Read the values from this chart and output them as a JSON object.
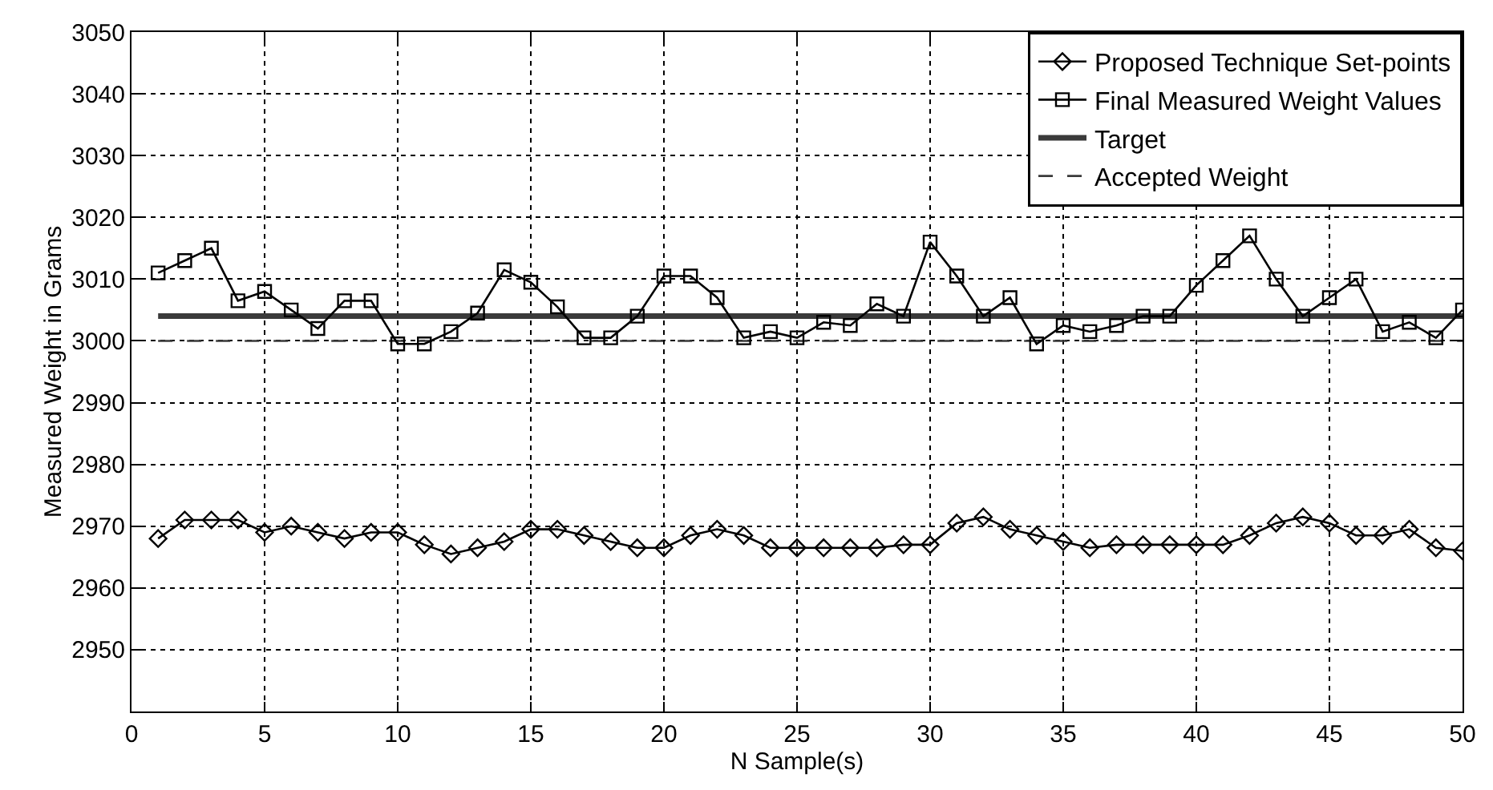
{
  "chart_data": {
    "type": "line",
    "xlabel": "N Sample(s)",
    "ylabel": "Measured Weight in Grams",
    "x": [
      1,
      2,
      3,
      4,
      5,
      6,
      7,
      8,
      9,
      10,
      11,
      12,
      13,
      14,
      15,
      16,
      17,
      18,
      19,
      20,
      21,
      22,
      23,
      24,
      25,
      26,
      27,
      28,
      29,
      30,
      31,
      32,
      33,
      34,
      35,
      36,
      37,
      38,
      39,
      40,
      41,
      42,
      43,
      44,
      45,
      46,
      47,
      48,
      49,
      50
    ],
    "series": [
      {
        "name": "Proposed Technique Set-points",
        "color": "#000000",
        "marker": "diamond",
        "line_style": "solid",
        "values": [
          2968,
          2971,
          2971,
          2971,
          2969,
          2970,
          2969,
          2968,
          2969,
          2969,
          2967,
          2965.5,
          2966.5,
          2967.5,
          2969.5,
          2969.5,
          2968.5,
          2967.5,
          2966.5,
          2966.5,
          2968.5,
          2969.5,
          2968.5,
          2966.5,
          2966.5,
          2966.5,
          2966.5,
          2966.5,
          2967,
          2967,
          2970.5,
          2971.5,
          2969.5,
          2968.5,
          2967.5,
          2966.5,
          2967,
          2967,
          2967,
          2967,
          2967,
          2968.5,
          2970.5,
          2971.5,
          2970.5,
          2968.5,
          2968.5,
          2969.5,
          2966.5,
          2966
        ]
      },
      {
        "name": "Final Measured Weight Values",
        "color": "#000000",
        "marker": "square",
        "line_style": "solid",
        "values": [
          3011,
          3013,
          3015,
          3006.5,
          3008,
          3005,
          3002,
          3006.5,
          3006.5,
          2999.5,
          2999.5,
          3001.5,
          3004.5,
          3011.5,
          3009.5,
          3005.5,
          3000.5,
          3000.5,
          3004,
          3010.5,
          3010.5,
          3007,
          3000.5,
          3001.5,
          3000.5,
          3003,
          3002.5,
          3006,
          3004,
          3016,
          3010.5,
          3004,
          3007,
          2999.5,
          3002.5,
          3001.5,
          3002.5,
          3004,
          3004,
          3009,
          3013,
          3017,
          3010,
          3004,
          3007,
          3010,
          3001.5,
          3003,
          3000.5,
          3005
        ]
      },
      {
        "name": "Target",
        "color": "#3a3a3a",
        "marker": "none",
        "line_style": "solid",
        "values": [
          3004,
          3004,
          3004,
          3004,
          3004,
          3004,
          3004,
          3004,
          3004,
          3004,
          3004,
          3004,
          3004,
          3004,
          3004,
          3004,
          3004,
          3004,
          3004,
          3004,
          3004,
          3004,
          3004,
          3004,
          3004,
          3004,
          3004,
          3004,
          3004,
          3004,
          3004,
          3004,
          3004,
          3004,
          3004,
          3004,
          3004,
          3004,
          3004,
          3004,
          3004,
          3004,
          3004,
          3004,
          3004,
          3004,
          3004,
          3004,
          3004,
          3004
        ]
      },
      {
        "name": "Accepted Weight",
        "color": "#3a3a3a",
        "marker": "none",
        "line_style": "dashed",
        "values": [
          3000,
          3000,
          3000,
          3000,
          3000,
          3000,
          3000,
          3000,
          3000,
          3000,
          3000,
          3000,
          3000,
          3000,
          3000,
          3000,
          3000,
          3000,
          3000,
          3000,
          3000,
          3000,
          3000,
          3000,
          3000,
          3000,
          3000,
          3000,
          3000,
          3000,
          3000,
          3000,
          3000,
          3000,
          3000,
          3000,
          3000,
          3000,
          3000,
          3000,
          3000,
          3000,
          3000,
          3000,
          3000,
          3000,
          3000,
          3000,
          3000,
          3000
        ]
      }
    ],
    "xlim": [
      0,
      50
    ],
    "xticks": [
      0,
      5,
      10,
      15,
      20,
      25,
      30,
      35,
      40,
      45,
      50
    ],
    "ylim": [
      2940,
      3050
    ],
    "yticks": [
      2950,
      2960,
      2970,
      2980,
      2990,
      3000,
      3010,
      3020,
      3030,
      3040,
      3050
    ],
    "grid": true,
    "legend": "top right"
  }
}
